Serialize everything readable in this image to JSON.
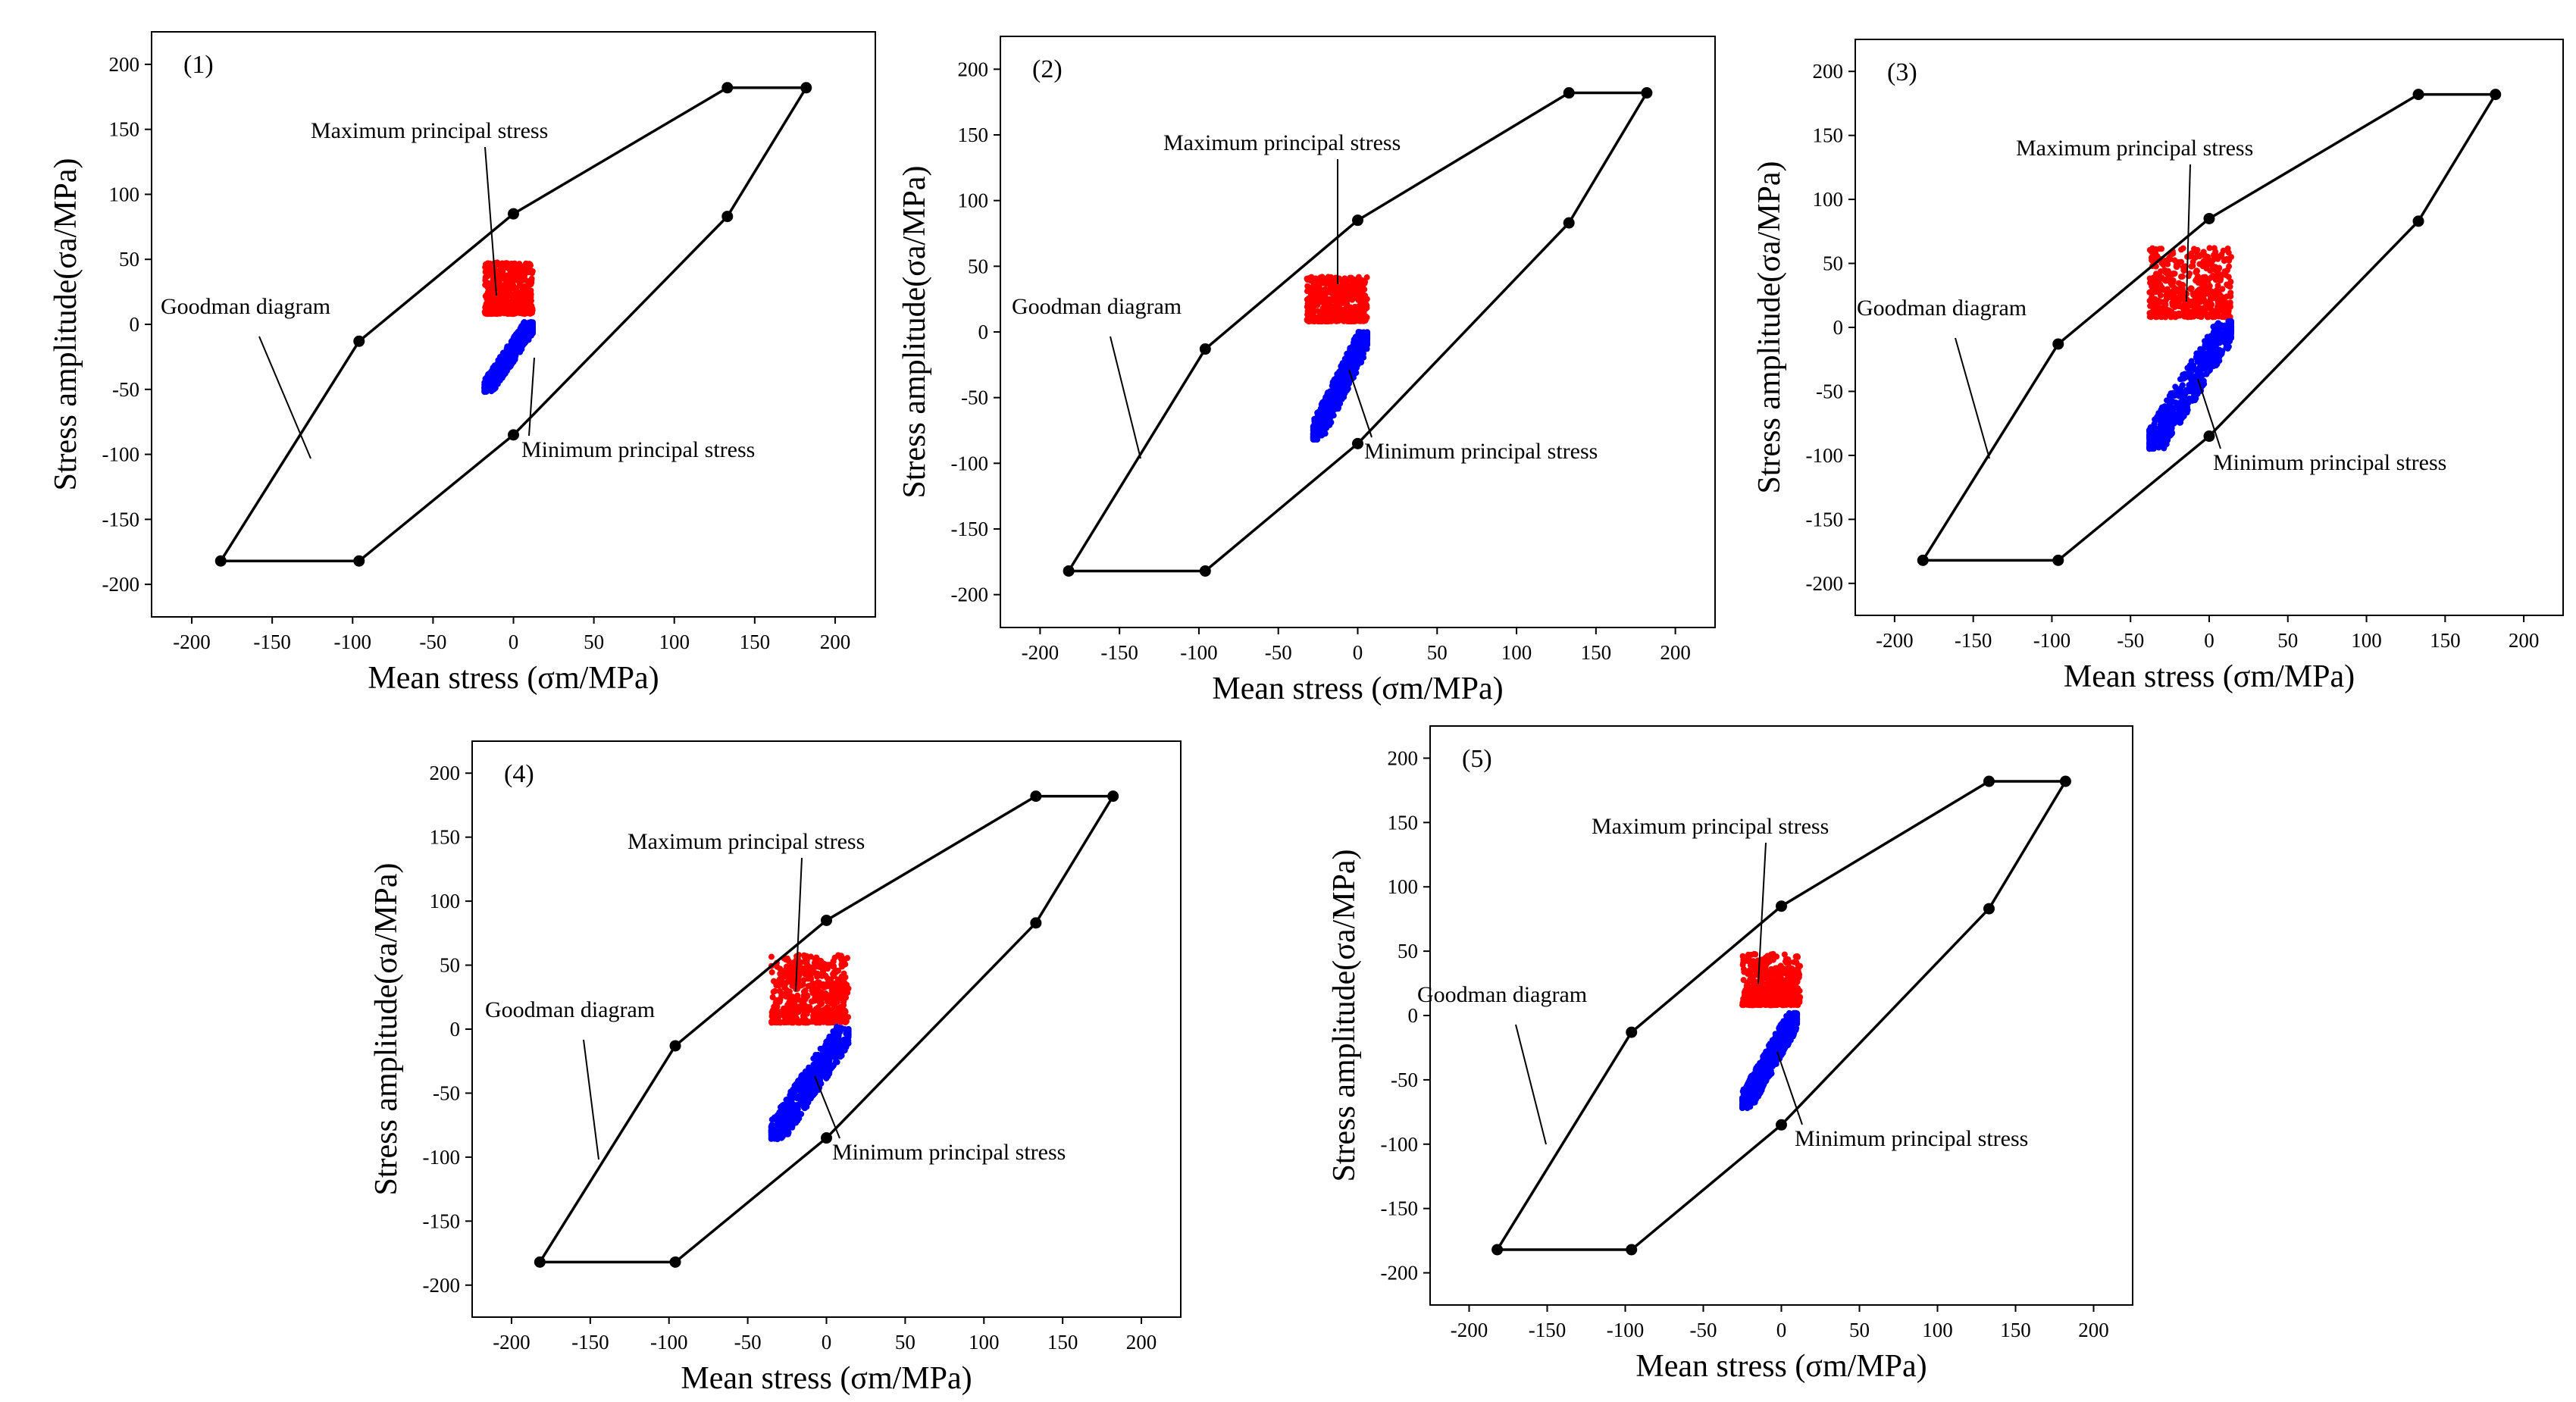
{
  "figure": {
    "name": "goodman-diagram-comparison"
  },
  "chart_data": [
    {
      "type": "scatter",
      "panel_label": "(1)",
      "xlabel": "Mean stress (σm/MPa)",
      "ylabel": "Stress amplitude(σa/MPa)",
      "xlim": [
        -225,
        225
      ],
      "ylim": [
        -225,
        225
      ],
      "xticks": [
        -200,
        -150,
        -100,
        -50,
        0,
        50,
        100,
        150,
        200
      ],
      "yticks": [
        -200,
        -150,
        -100,
        -50,
        0,
        50,
        100,
        150,
        200
      ],
      "goodman_vertices": [
        [
          -182,
          -182
        ],
        [
          -96,
          -182
        ],
        [
          0,
          -85
        ],
        [
          133,
          83
        ],
        [
          182,
          182
        ],
        [
          133,
          182
        ],
        [
          0,
          85
        ],
        [
          -96,
          -13
        ]
      ],
      "annotations": {
        "max": "Maximum principal stress",
        "min": "Minimum principal stress",
        "goodman": "Goodman diagram"
      },
      "series": [
        {
          "name": "Maximum principal stress",
          "color": "#ff0000",
          "x_range": [
            -18,
            12
          ],
          "y_range": [
            8,
            48
          ]
        },
        {
          "name": "Minimum principal stress",
          "color": "#0000ff",
          "x_range": [
            -18,
            12
          ],
          "y_range": [
            -52,
            2
          ]
        }
      ]
    },
    {
      "type": "scatter",
      "panel_label": "(2)",
      "xlabel": "Mean stress (σm/MPa)",
      "ylabel": "Stress amplitude(σa/MPa)",
      "xlim": [
        -225,
        225
      ],
      "ylim": [
        -225,
        225
      ],
      "xticks": [
        -200,
        -150,
        -100,
        -50,
        0,
        50,
        100,
        150,
        200
      ],
      "yticks": [
        -200,
        -150,
        -100,
        -50,
        0,
        50,
        100,
        150,
        200
      ],
      "goodman_vertices": [
        [
          -182,
          -182
        ],
        [
          -96,
          -182
        ],
        [
          0,
          -85
        ],
        [
          133,
          83
        ],
        [
          182,
          182
        ],
        [
          133,
          182
        ],
        [
          0,
          85
        ],
        [
          -96,
          -13
        ]
      ],
      "annotations": {
        "max": "Maximum principal stress",
        "min": "Minimum principal stress",
        "goodman": "Goodman diagram"
      },
      "series": [
        {
          "name": "Maximum principal stress",
          "color": "#ff0000",
          "x_range": [
            -32,
            6
          ],
          "y_range": [
            8,
            42
          ]
        },
        {
          "name": "Minimum principal stress",
          "color": "#0000ff",
          "x_range": [
            -28,
            6
          ],
          "y_range": [
            -82,
            0
          ]
        }
      ]
    },
    {
      "type": "scatter",
      "panel_label": "(3)",
      "xlabel": "Mean stress (σm/MPa)",
      "ylabel": "Stress amplitude(σa/MPa)",
      "xlim": [
        -225,
        225
      ],
      "ylim": [
        -225,
        225
      ],
      "xticks": [
        -200,
        -150,
        -100,
        -50,
        0,
        50,
        100,
        150,
        200
      ],
      "yticks": [
        -200,
        -150,
        -100,
        -50,
        0,
        50,
        100,
        150,
        200
      ],
      "goodman_vertices": [
        [
          -182,
          -182
        ],
        [
          -96,
          -182
        ],
        [
          0,
          -85
        ],
        [
          133,
          83
        ],
        [
          182,
          182
        ],
        [
          133,
          182
        ],
        [
          0,
          85
        ],
        [
          -96,
          -13
        ]
      ],
      "annotations": {
        "max": "Maximum principal stress",
        "min": "Minimum principal stress",
        "goodman": "Goodman diagram"
      },
      "series": [
        {
          "name": "Maximum principal stress",
          "color": "#ff0000",
          "x_range": [
            -38,
            14
          ],
          "y_range": [
            8,
            62
          ]
        },
        {
          "name": "Minimum principal stress",
          "color": "#0000ff",
          "x_range": [
            -38,
            14
          ],
          "y_range": [
            -95,
            5
          ]
        }
      ]
    },
    {
      "type": "scatter",
      "panel_label": "(4)",
      "xlabel": "Mean stress (σm/MPa)",
      "ylabel": "Stress amplitude(σa/MPa)",
      "xlim": [
        -225,
        225
      ],
      "ylim": [
        -225,
        225
      ],
      "xticks": [
        -200,
        -150,
        -100,
        -50,
        0,
        50,
        100,
        150,
        200
      ],
      "yticks": [
        -200,
        -150,
        -100,
        -50,
        0,
        50,
        100,
        150,
        200
      ],
      "goodman_vertices": [
        [
          -182,
          -182
        ],
        [
          -96,
          -182
        ],
        [
          0,
          -85
        ],
        [
          133,
          83
        ],
        [
          182,
          182
        ],
        [
          133,
          182
        ],
        [
          0,
          85
        ],
        [
          -96,
          -13
        ]
      ],
      "annotations": {
        "max": "Maximum principal stress",
        "min": "Minimum principal stress",
        "goodman": "Goodman diagram"
      },
      "series": [
        {
          "name": "Maximum principal stress",
          "color": "#ff0000",
          "x_range": [
            -35,
            14
          ],
          "y_range": [
            5,
            58
          ]
        },
        {
          "name": "Minimum principal stress",
          "color": "#0000ff",
          "x_range": [
            -35,
            14
          ],
          "y_range": [
            -86,
            2
          ]
        }
      ]
    },
    {
      "type": "scatter",
      "panel_label": "(5)",
      "xlabel": "Mean stress (σm/MPa)",
      "ylabel": "Stress amplitude(σa/MPa)",
      "xlim": [
        -225,
        225
      ],
      "ylim": [
        -225,
        225
      ],
      "xticks": [
        -200,
        -150,
        -100,
        -50,
        0,
        50,
        100,
        150,
        200
      ],
      "yticks": [
        -200,
        -150,
        -100,
        -50,
        0,
        50,
        100,
        150,
        200
      ],
      "goodman_vertices": [
        [
          -182,
          -182
        ],
        [
          -96,
          -182
        ],
        [
          0,
          -85
        ],
        [
          133,
          83
        ],
        [
          182,
          182
        ],
        [
          133,
          182
        ],
        [
          0,
          85
        ],
        [
          -96,
          -13
        ]
      ],
      "annotations": {
        "max": "Maximum principal stress",
        "min": "Minimum principal stress",
        "goodman": "Goodman diagram"
      },
      "series": [
        {
          "name": "Maximum principal stress",
          "color": "#ff0000",
          "x_range": [
            -25,
            12
          ],
          "y_range": [
            8,
            48
          ]
        },
        {
          "name": "Minimum principal stress",
          "color": "#0000ff",
          "x_range": [
            -25,
            10
          ],
          "y_range": [
            -72,
            2
          ]
        }
      ]
    }
  ]
}
